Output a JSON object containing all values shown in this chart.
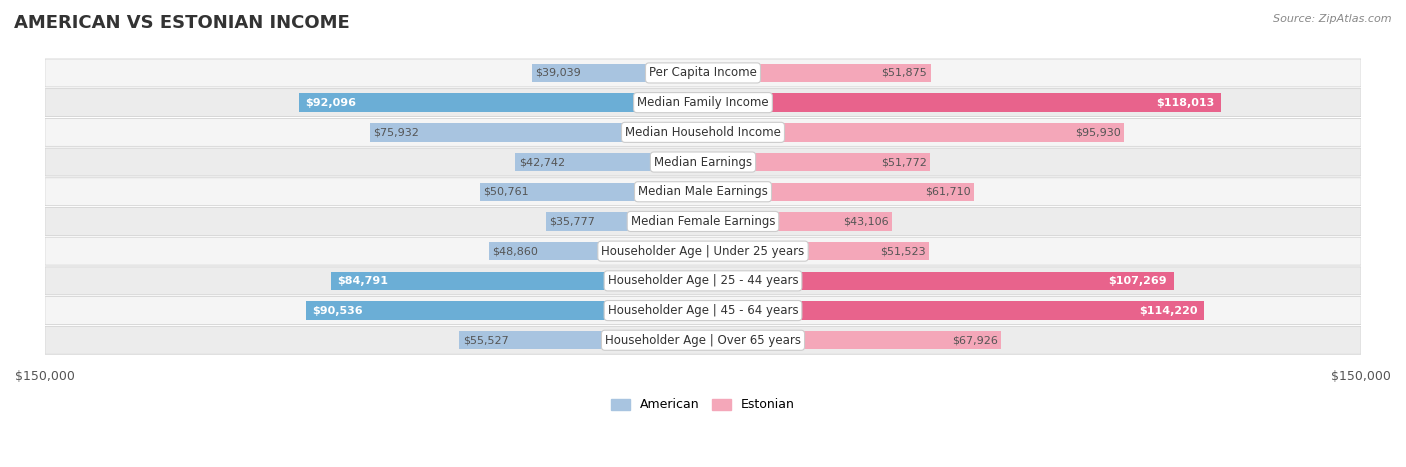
{
  "title": "AMERICAN VS ESTONIAN INCOME",
  "source": "Source: ZipAtlas.com",
  "categories": [
    "Per Capita Income",
    "Median Family Income",
    "Median Household Income",
    "Median Earnings",
    "Median Male Earnings",
    "Median Female Earnings",
    "Householder Age | Under 25 years",
    "Householder Age | 25 - 44 years",
    "Householder Age | 45 - 64 years",
    "Householder Age | Over 65 years"
  ],
  "american_values": [
    39039,
    92096,
    75932,
    42742,
    50761,
    35777,
    48860,
    84791,
    90536,
    55527
  ],
  "estonian_values": [
    51875,
    118013,
    95930,
    51772,
    61710,
    43106,
    51523,
    107269,
    114220,
    67926
  ],
  "max_val": 150000,
  "american_color_light": "#a8c4e0",
  "american_color_dark": "#6baed6",
  "estonian_color_light": "#f4a7b9",
  "estonian_color_dark": "#e8638c",
  "label_bg_color": "#ffffff",
  "row_bg_color": "#f0f0f0",
  "row_bg_alt": "#e8e8e8",
  "title_fontsize": 13,
  "label_fontsize": 8.5,
  "value_fontsize": 8,
  "bg_color": "#ffffff",
  "american_threshold": 80000,
  "estonian_threshold": 100000
}
